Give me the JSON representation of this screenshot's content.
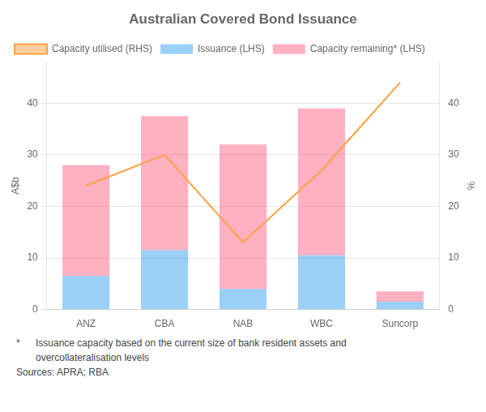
{
  "chart_data": {
    "type": "bar",
    "title": "Australian Covered Bond Issuance",
    "categories": [
      "ANZ",
      "CBA",
      "NAB",
      "WBC",
      "Suncorp"
    ],
    "series": [
      {
        "name": "Issuance (LHS)",
        "type": "bar",
        "values": [
          6.5,
          11.5,
          4.0,
          10.5,
          1.5
        ]
      },
      {
        "name": "Capacity remaining* (LHS)",
        "type": "bar",
        "values": [
          21.5,
          26.0,
          28.0,
          28.5,
          2.0
        ]
      },
      {
        "name": "Capacity utilised (RHS)",
        "type": "line",
        "axis": "y2",
        "values": [
          24.0,
          30.0,
          13.0,
          27.0,
          44.0
        ]
      }
    ],
    "stacked": true,
    "ylabel": "A$b",
    "y2label": "%",
    "ylim": [
      0,
      48
    ],
    "yticks": [
      0,
      10,
      20,
      30,
      40
    ],
    "y2lim": [
      0,
      48
    ],
    "y2ticks": [
      0,
      10,
      20,
      30,
      40
    ],
    "grid": true,
    "legend": "upper left",
    "annotations": [
      "*",
      "Issuance capacity based on the current size of bank resident assets and",
      "overcollateralisation levels",
      "Sources: APRA; RBA"
    ]
  }
}
